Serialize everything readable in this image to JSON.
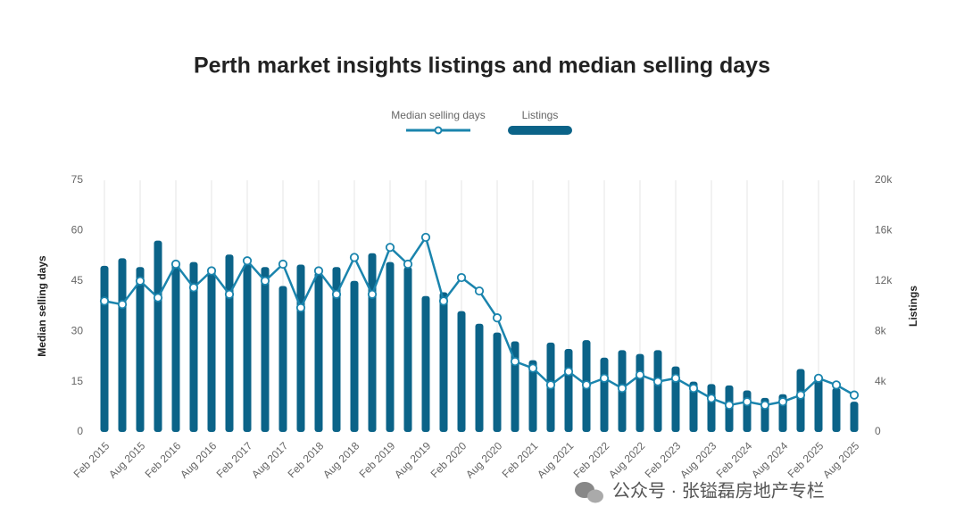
{
  "chart_data": {
    "type": "bar",
    "title": "Perth market insights listings and median selling days",
    "categories": [
      "Feb 2015",
      null,
      "Aug 2015",
      null,
      "Feb 2016",
      null,
      "Aug 2016",
      null,
      "Feb 2017",
      null,
      "Aug 2017",
      null,
      "Feb 2018",
      null,
      "Aug 2018",
      null,
      "Feb 2019",
      null,
      "Aug 2019",
      null,
      "Feb 2020",
      null,
      "Aug 2020",
      null,
      "Feb 2021",
      null,
      "Aug 2021",
      null,
      "Feb 2022",
      null,
      "Aug 2022",
      null,
      "Feb 2023",
      null,
      "Aug 2023",
      null,
      "Feb 2024",
      null,
      "Aug 2024",
      null,
      "Feb 2025",
      null,
      "Aug 2025"
    ],
    "series": [
      {
        "name": "Median selling days",
        "type": "line",
        "axis": "y",
        "color": "#1a84ad",
        "values": [
          39,
          38,
          45,
          40,
          50,
          43,
          48,
          41,
          51,
          45,
          50,
          37,
          48,
          41,
          52,
          41,
          55,
          50,
          58,
          39,
          46,
          42,
          34,
          21,
          19,
          14,
          18,
          14,
          16,
          13,
          17,
          15,
          16,
          13,
          10,
          8,
          9,
          8,
          9,
          11,
          16,
          14,
          11
        ]
      },
      {
        "name": "Listings",
        "type": "bar",
        "axis": "y2",
        "color": "#0b6388",
        "values": [
          13200,
          13800,
          13100,
          15200,
          13600,
          13500,
          13100,
          14100,
          13300,
          13100,
          11600,
          13300,
          12700,
          13100,
          12000,
          14200,
          13500,
          13100,
          10800,
          11100,
          9600,
          8600,
          7900,
          7200,
          5700,
          7100,
          6600,
          7300,
          5900,
          6500,
          6200,
          6500,
          5200,
          4000,
          3800,
          3700,
          3300,
          2700,
          3000,
          5000,
          4300,
          3500,
          2400
        ]
      }
    ],
    "ylabel": "Median selling days",
    "y2label": "Listings",
    "ylim": [
      0,
      75
    ],
    "yticks": [
      0,
      15,
      30,
      45,
      60,
      75
    ],
    "y2lim": [
      0,
      20000
    ],
    "y2ticks": [
      0,
      {
        "value": 4000,
        "label": "4k"
      },
      {
        "value": 8000,
        "label": "8k"
      },
      {
        "value": 12000,
        "label": "12k"
      },
      {
        "value": 16000,
        "label": "16k"
      },
      {
        "value": 20000,
        "label": "20k"
      }
    ],
    "grid": true,
    "legend": "top"
  },
  "watermark": "公众号 · 张镒磊房地产专栏"
}
